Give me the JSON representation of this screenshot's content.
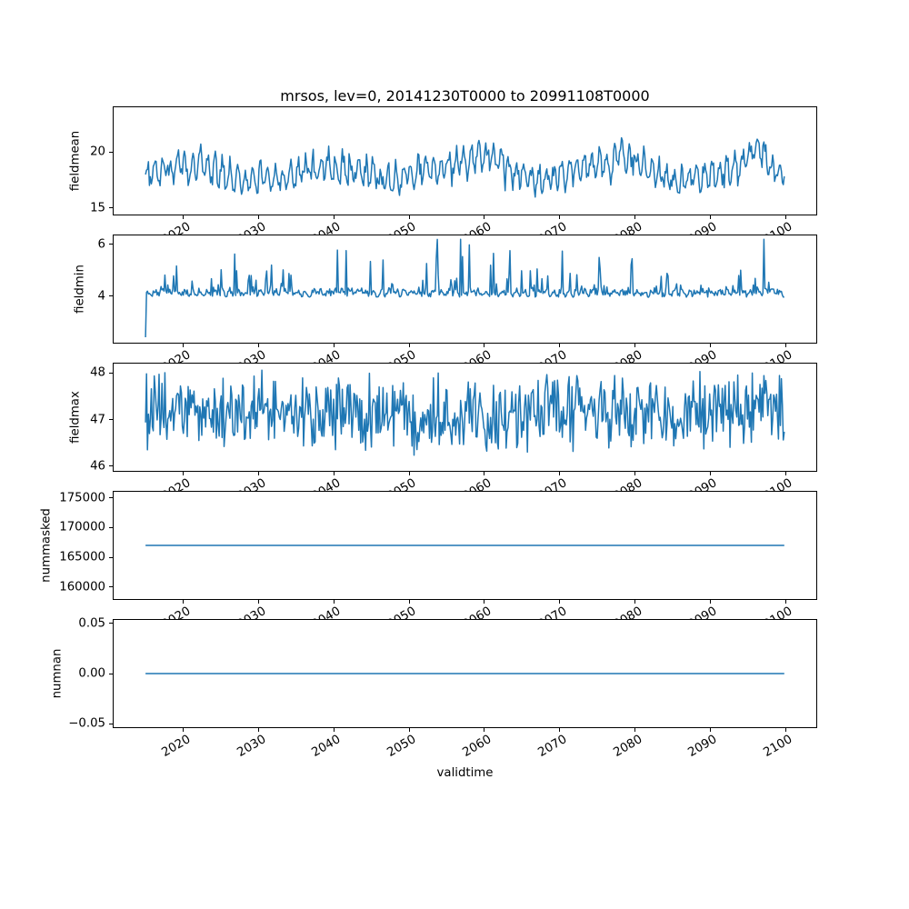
{
  "figure": {
    "background_color": "#ffffff",
    "line_color": "#1f77b4",
    "spine_color": "#000000",
    "text_color": "#000000"
  },
  "title": "mrsos, lev=0, 20141230T0000 to 20991108T0000",
  "chart_data": {
    "type": "line",
    "grid": false,
    "legend": null,
    "title": "mrsos, lev=0, 20141230T0000 to 20991108T0000",
    "xlabel": "validtime",
    "x": {
      "start": 2014.99,
      "end": 2099.85,
      "n": 660,
      "xlim": [
        2010.75,
        2104.1
      ],
      "tick_years": [
        2020,
        2030,
        2040,
        2050,
        2060,
        2070,
        2080,
        2090,
        2100
      ],
      "tick_labels": [
        "2020",
        "2030",
        "2040",
        "2050",
        "2060",
        "2070",
        "2080",
        "2090",
        "2100"
      ]
    },
    "subplots": [
      {
        "name": "fieldmean",
        "ylabel": "fieldmean",
        "yticks": [
          15,
          20
        ],
        "ytick_labels": [
          "15",
          "20"
        ],
        "ylim": [
          14.42,
          23.98
        ],
        "summary": "noisy quasi-seasonal series, range ~14.7 to ~23.7, mean ~18.2; stronger peaks near 2060, 2079 and 2096 (max ~23.7)",
        "gen": {
          "type": "seasonal",
          "base": 18.0,
          "season": 1.0,
          "freq": 1.0,
          "noise": 1.15,
          "slow": 0.55,
          "slowPeriod": 19,
          "seed": 42,
          "clamp": [
            14.65,
            23.72
          ],
          "bumps": [
            {
              "x": 2023.0,
              "a": 0.7,
              "w": 1.6
            },
            {
              "x": 2043.0,
              "a": 0.5,
              "w": 1.5
            },
            {
              "x": 2051.5,
              "a": 0.9,
              "w": 1.6
            },
            {
              "x": 2060.5,
              "a": 1.6,
              "w": 2.6
            },
            {
              "x": 2071.0,
              "a": 0.8,
              "w": 1.2
            },
            {
              "x": 2079.5,
              "a": 1.7,
              "w": 2.0
            },
            {
              "x": 2096.2,
              "a": 2.5,
              "w": 1.1
            }
          ]
        }
      },
      {
        "name": "fieldmin",
        "ylabel": "fieldmin",
        "yticks": [
          4,
          6
        ],
        "ytick_labels": [
          "4",
          "6"
        ],
        "ylim": [
          2.19,
          6.35
        ],
        "summary": "baseline ~4.0-4.4 with frequent upward spikes to ~5-6.1 (densest 2055-2065 and near 2079); very first point dips to ~2.4",
        "gen": {
          "type": "spiky",
          "base": 4.02,
          "noise": 0.3,
          "spikeProb": 0.14,
          "spikeAmp": 1.9,
          "seed": 7,
          "first": 2.4,
          "clamp": [
            2.37,
            6.2
          ],
          "bumps": [
            {
              "x": 2033.0,
              "a": 0.3,
              "w": 2.0
            },
            {
              "x": 2060.0,
              "a": 1.0,
              "w": 4.0
            },
            {
              "x": 2079.5,
              "a": 0.9,
              "w": 2.2
            },
            {
              "x": 2095.0,
              "a": 0.5,
              "w": 2.0
            }
          ]
        }
      },
      {
        "name": "fieldmax",
        "ylabel": "fieldmax",
        "yticks": [
          46,
          47,
          48
        ],
        "ytick_labels": [
          "46",
          "47",
          "48"
        ],
        "ylim": [
          45.9,
          48.2
        ],
        "summary": "dense high-frequency noise band between ~46.0 and ~48.1, centered ~47.2",
        "gen": {
          "type": "band",
          "base": 47.15,
          "noise": 0.95,
          "seed": 1234,
          "clamp": [
            46.0,
            48.1
          ]
        }
      },
      {
        "name": "nummasked",
        "ylabel": "nummasked",
        "yticks": [
          160000,
          165000,
          170000,
          175000
        ],
        "ytick_labels": [
          "160000",
          "165000",
          "170000",
          "175000"
        ],
        "ylim": [
          158000,
          176000
        ],
        "summary": "constant value ~167000 for the whole period",
        "gen": {
          "type": "constant",
          "value": 167000
        }
      },
      {
        "name": "numnan",
        "ylabel": "numnan",
        "yticks": [
          -0.05,
          0.0,
          0.05
        ],
        "ytick_labels": [
          "−0.05",
          "0.00",
          "0.05"
        ],
        "ylim": [
          -0.0535,
          0.0535
        ],
        "summary": "constant value 0.00 for the whole period",
        "gen": {
          "type": "constant",
          "value": 0
        }
      }
    ]
  }
}
